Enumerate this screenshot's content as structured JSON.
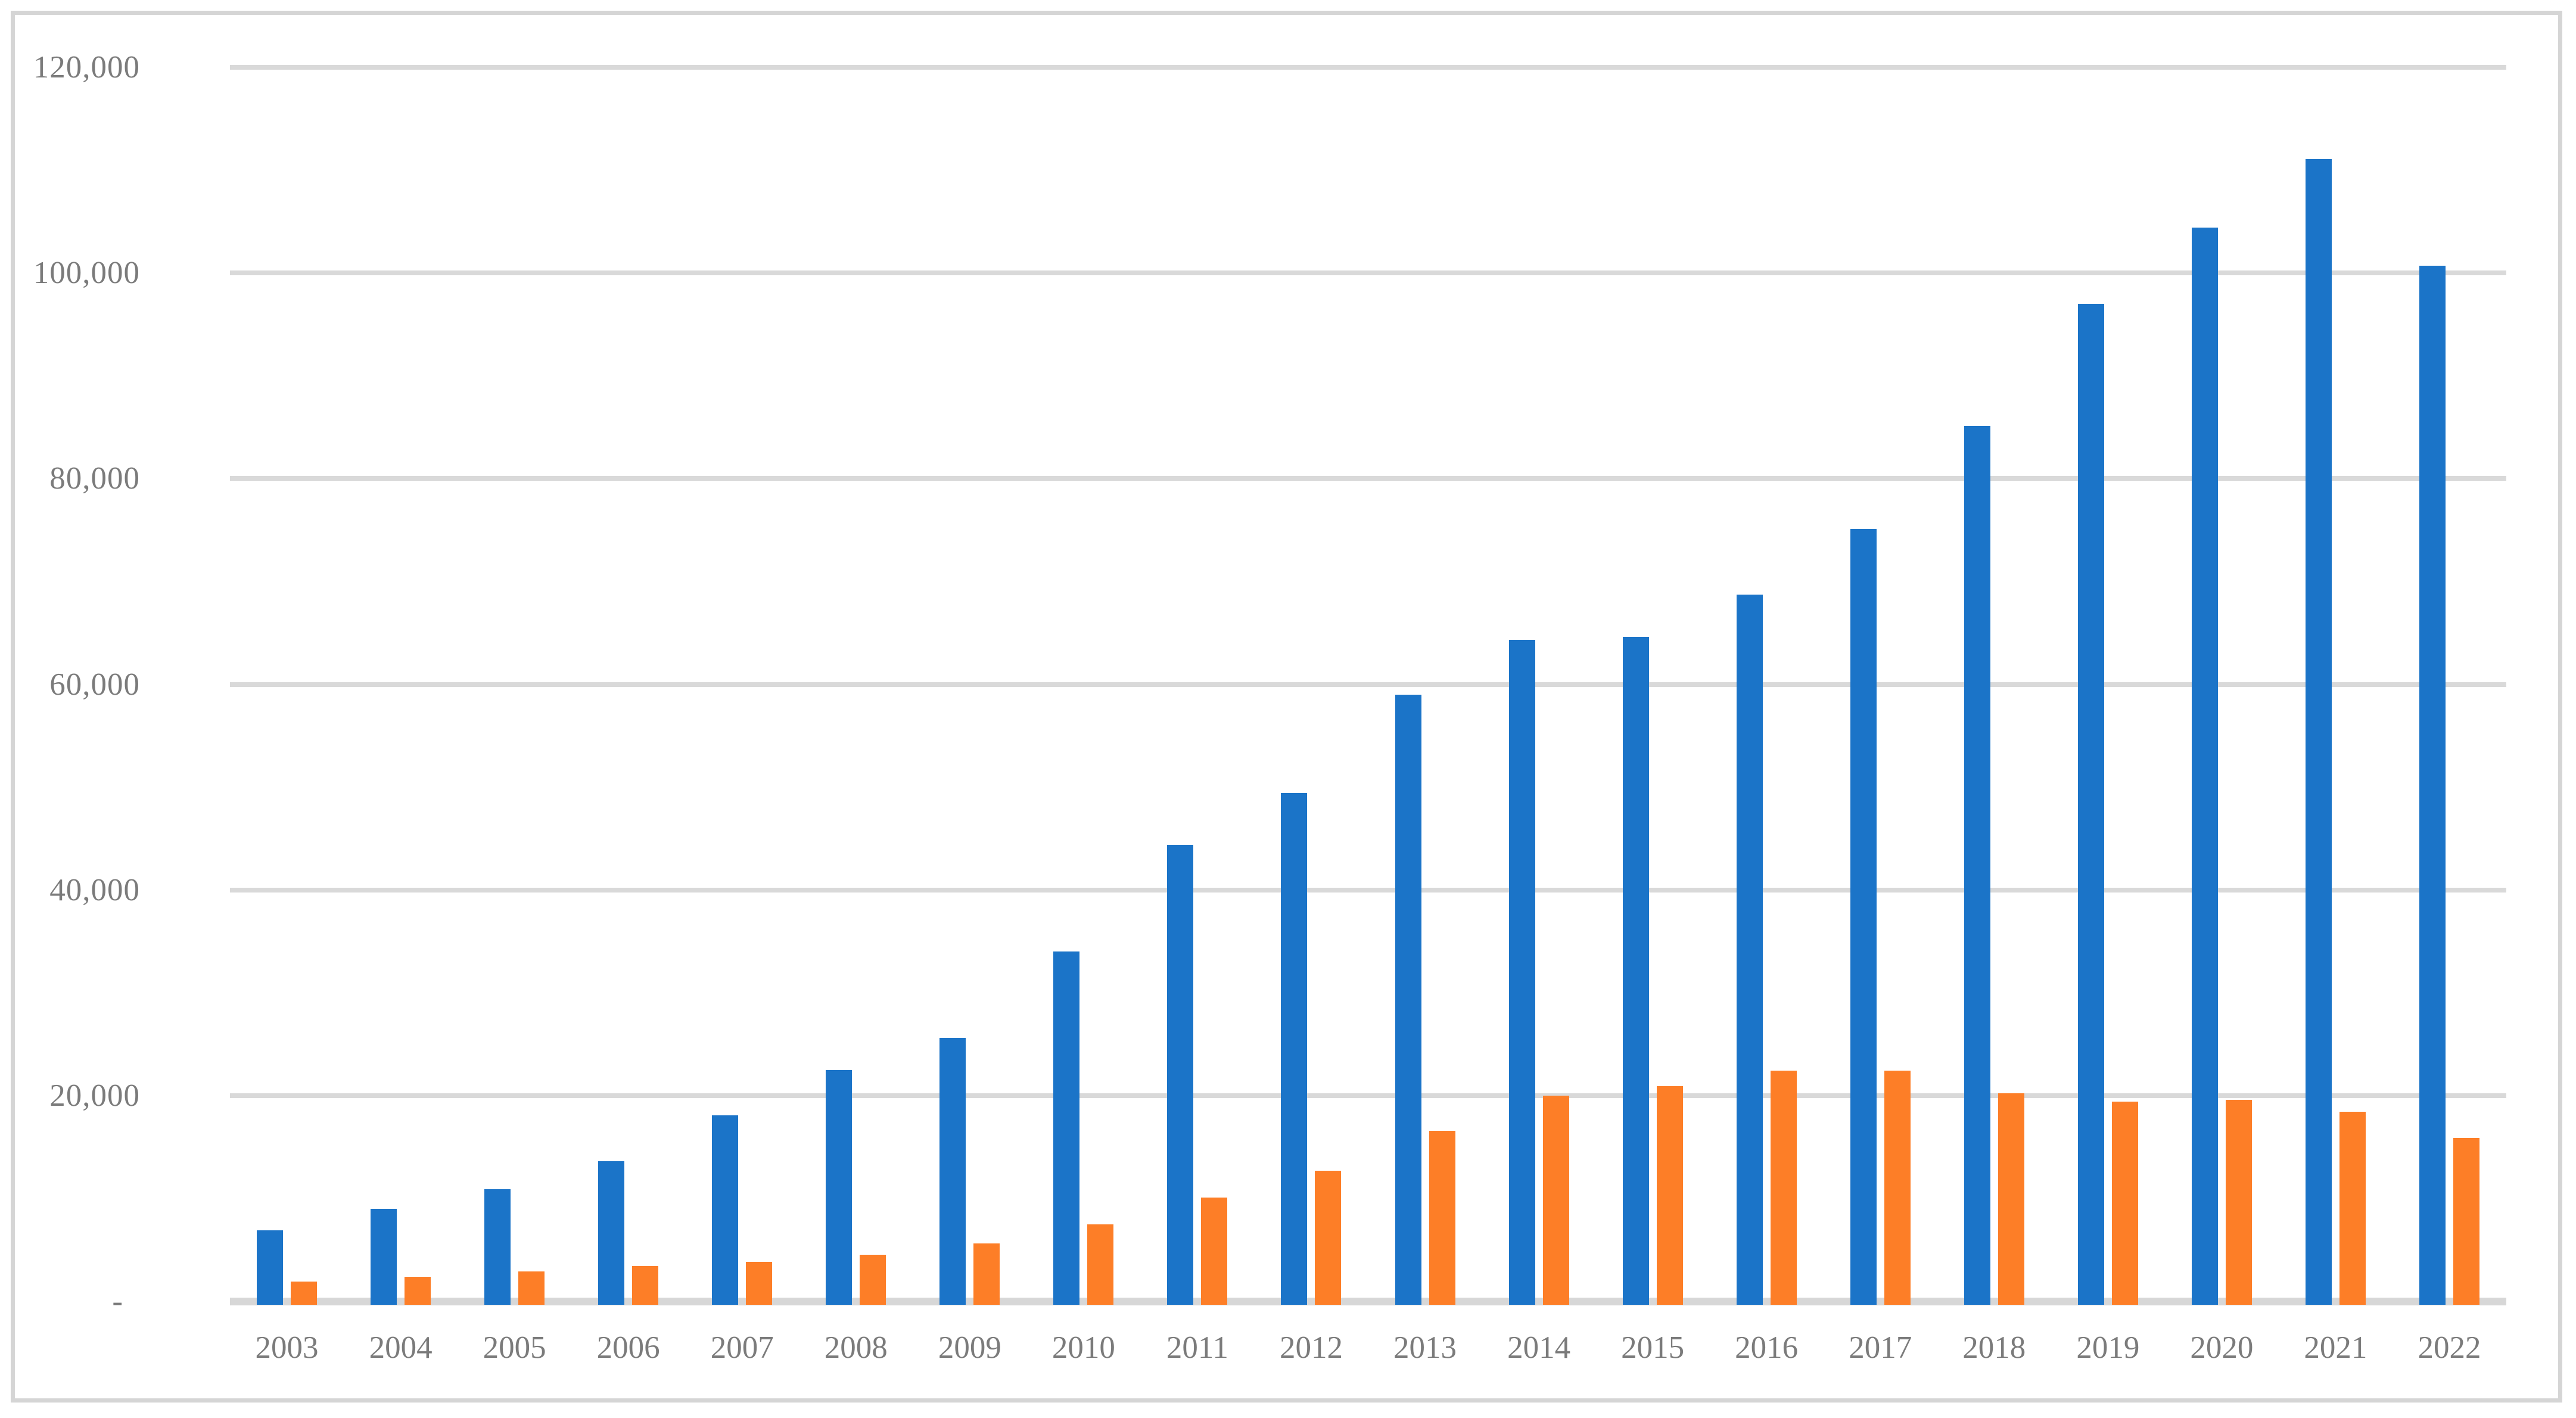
{
  "chart_data": {
    "type": "bar",
    "title": "",
    "subtitle": "",
    "xlabel": "",
    "ylabel": "",
    "legend": "none",
    "grid": "horizontal",
    "ylim": [
      0,
      120000
    ],
    "categories": [
      "2003",
      "2004",
      "2005",
      "2006",
      "2007",
      "2008",
      "2009",
      "2010",
      "2011",
      "2012",
      "2013",
      "2014",
      "2015",
      "2016",
      "2017",
      "2018",
      "2019",
      "2020",
      "2021",
      "2022"
    ],
    "series": [
      {
        "name": "series-blue",
        "color": "#1B74C8",
        "values": [
          6900,
          9000,
          10900,
          13600,
          18100,
          22500,
          25600,
          34000,
          44400,
          49400,
          59000,
          64300,
          64600,
          68700,
          75100,
          85100,
          97000,
          104400,
          111100,
          100700
        ]
      },
      {
        "name": "series-orange",
        "color": "#FD7E27",
        "values": [
          1900,
          2400,
          2900,
          3400,
          3800,
          4500,
          5600,
          7500,
          10100,
          12700,
          16600,
          20000,
          20900,
          22400,
          22400,
          20200,
          19400,
          19600,
          18400,
          15900
        ]
      }
    ],
    "y_ticks": [
      {
        "value": 120000,
        "label": "120,000"
      },
      {
        "value": 100000,
        "label": "100,000"
      },
      {
        "value": 80000,
        "label": "80,000"
      },
      {
        "value": 60000,
        "label": "60,000"
      },
      {
        "value": 40000,
        "label": "40,000"
      },
      {
        "value": 20000,
        "label": "20,000"
      },
      {
        "value": 0,
        "label": "-"
      }
    ]
  },
  "style_colors": {
    "background": "#FFFFFF",
    "axis_label": "#7B7B7B",
    "gridline": "#D9D9D9",
    "baseline": "#D7D7D7",
    "frame_border": "#D5D5D5"
  }
}
